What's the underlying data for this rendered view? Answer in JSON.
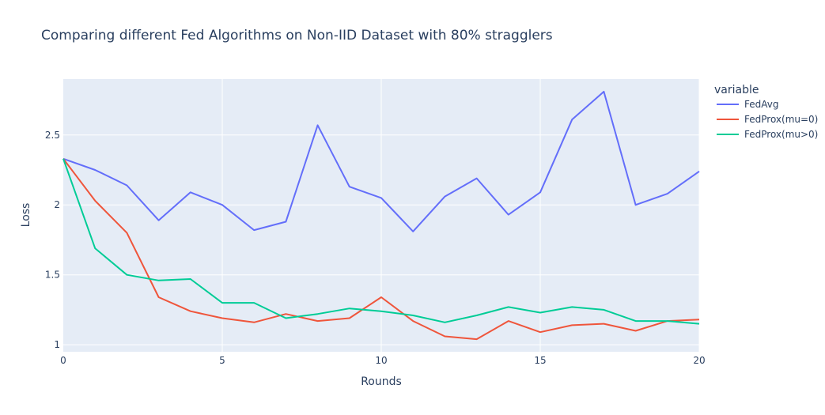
{
  "chart_data": {
    "type": "line",
    "title": "Comparing different Fed Algorithms on Non-IID Dataset with 80% stragglers",
    "xlabel": "Rounds",
    "ylabel": "Loss",
    "xlim": [
      0,
      20
    ],
    "ylim": [
      0.95,
      2.9
    ],
    "x_ticks": [
      0,
      5,
      10,
      15,
      20
    ],
    "y_ticks": [
      1,
      1.5,
      2,
      2.5
    ],
    "y_tick_labels": [
      "1",
      "1.5",
      "2",
      "2.5"
    ],
    "grid": true,
    "legend": {
      "title": "variable",
      "placement": "right"
    },
    "x": [
      0,
      1,
      2,
      3,
      4,
      5,
      6,
      7,
      8,
      9,
      10,
      11,
      12,
      13,
      14,
      15,
      16,
      17,
      18,
      19,
      20
    ],
    "series": [
      {
        "name": "FedAvg",
        "color": "#636efa",
        "values": [
          2.33,
          2.25,
          2.14,
          1.89,
          2.09,
          2.0,
          1.82,
          1.88,
          2.57,
          2.13,
          2.05,
          1.81,
          2.06,
          2.19,
          1.93,
          2.09,
          2.61,
          2.81,
          2.0,
          2.08,
          2.24
        ]
      },
      {
        "name": "FedProx(mu=0)",
        "color": "#ef553b",
        "values": [
          2.33,
          2.03,
          1.8,
          1.34,
          1.24,
          1.19,
          1.16,
          1.22,
          1.17,
          1.19,
          1.34,
          1.17,
          1.06,
          1.04,
          1.17,
          1.09,
          1.14,
          1.15,
          1.1,
          1.17,
          1.18
        ]
      },
      {
        "name": "FedProx(mu>0)",
        "color": "#00cc96",
        "values": [
          2.33,
          1.69,
          1.5,
          1.46,
          1.47,
          1.3,
          1.3,
          1.19,
          1.22,
          1.26,
          1.24,
          1.21,
          1.16,
          1.21,
          1.27,
          1.23,
          1.27,
          1.25,
          1.17,
          1.17,
          1.15
        ]
      }
    ]
  }
}
